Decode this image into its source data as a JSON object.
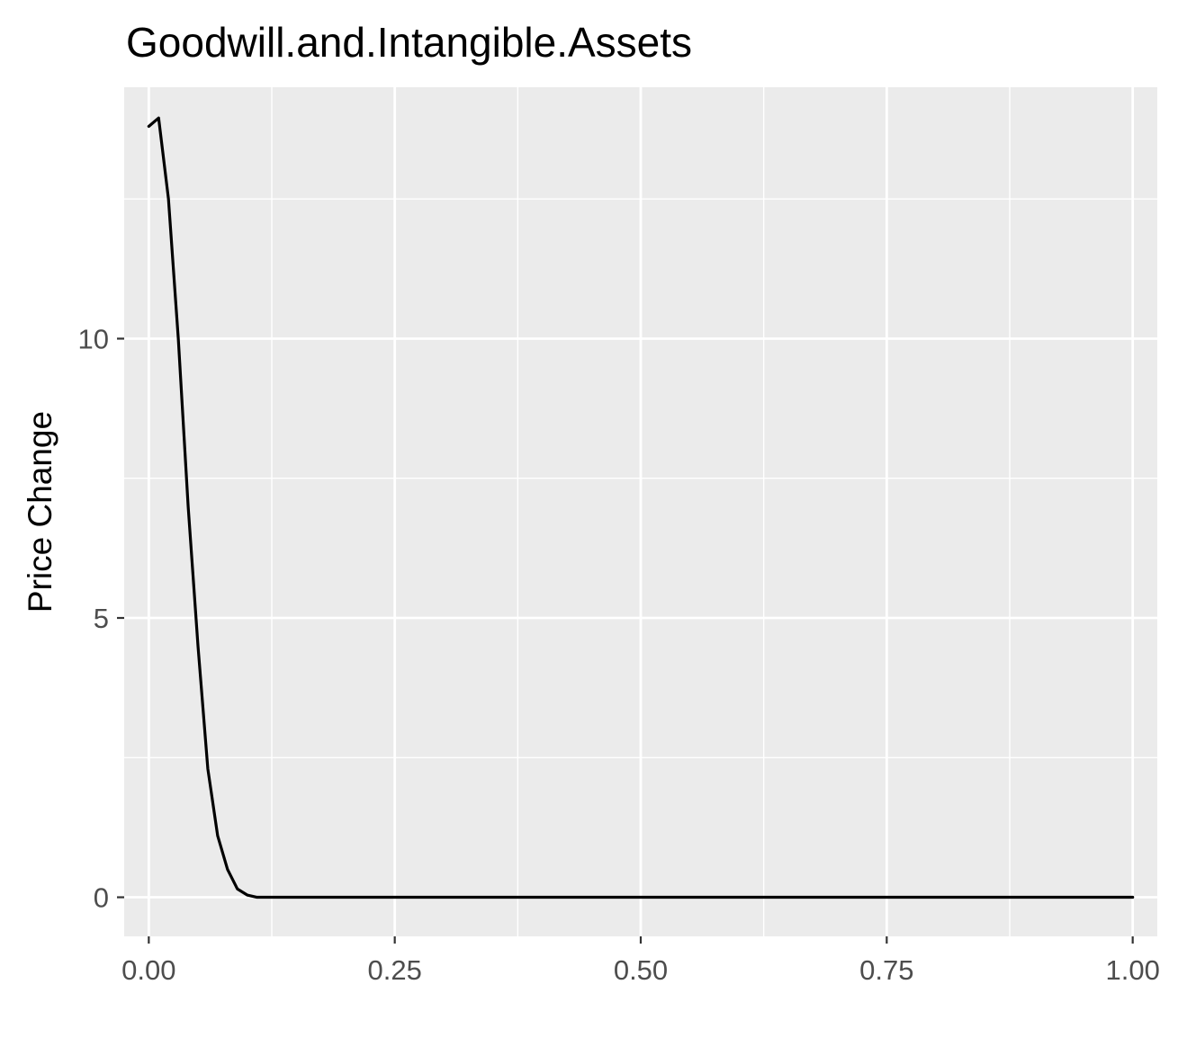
{
  "chart_data": {
    "type": "line",
    "title": "Goodwill.and.Intangible.Assets",
    "xlabel": "",
    "ylabel": "Price Change",
    "xlim": [
      -0.025,
      1.025
    ],
    "ylim": [
      -0.7,
      14.5
    ],
    "x_ticks": [
      0.0,
      0.25,
      0.5,
      0.75,
      1.0
    ],
    "x_tick_labels": [
      "0.00",
      "0.25",
      "0.50",
      "0.75",
      "1.00"
    ],
    "y_ticks": [
      0,
      5,
      10
    ],
    "y_tick_labels": [
      "0",
      "5",
      "10"
    ],
    "grid": true,
    "background": "#ebebeb",
    "grid_color": "#ffffff",
    "line_color": "#000000",
    "series": [
      {
        "x": [
          0.0,
          0.01,
          0.02,
          0.03,
          0.04,
          0.05,
          0.06,
          0.07,
          0.08,
          0.09,
          0.1,
          0.11,
          0.12,
          0.15,
          0.2,
          0.25,
          0.3,
          0.4,
          0.5,
          0.6,
          0.7,
          0.8,
          0.9,
          1.0
        ],
        "y": [
          13.8,
          13.95,
          12.5,
          10.0,
          7.0,
          4.5,
          2.3,
          1.1,
          0.5,
          0.15,
          0.04,
          0.0,
          0.0,
          0.0,
          0.0,
          0.0,
          0.0,
          0.0,
          0.0,
          0.0,
          0.0,
          0.0,
          0.0,
          0.0
        ]
      }
    ]
  }
}
